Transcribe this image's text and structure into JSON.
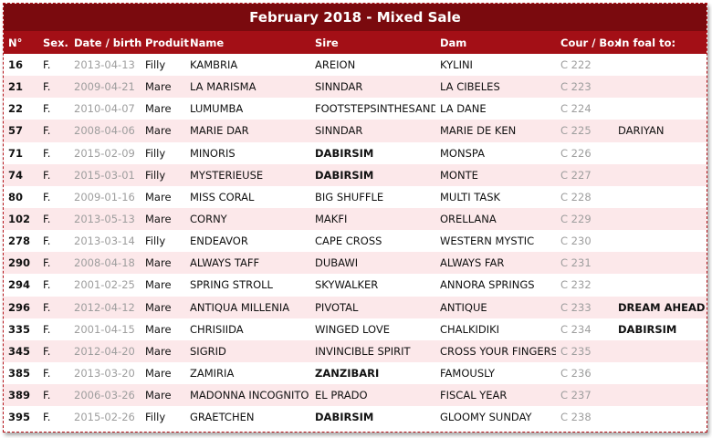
{
  "title": "February 2018 - Mixed Sale",
  "headers": [
    "N°",
    "Sex.",
    "Date / birth",
    "Produit",
    "Name",
    "Sire",
    "Dam",
    "Cour / Box",
    "In foal to:"
  ],
  "rows": [
    {
      "num": "16",
      "sex": "F.",
      "date": "2013-04-13",
      "produit": "Filly",
      "name": "KAMBRIA",
      "sire": "AREION",
      "sire_bold": false,
      "dam": "KYLINI",
      "cour": "C 222",
      "foal": "",
      "foal_bold": false
    },
    {
      "num": "21",
      "sex": "F.",
      "date": "2009-04-21",
      "produit": "Mare",
      "name": "LA MARISMA",
      "sire": "SINNDAR",
      "sire_bold": false,
      "dam": "LA CIBELES",
      "cour": "C 223",
      "foal": "",
      "foal_bold": false
    },
    {
      "num": "22",
      "sex": "F.",
      "date": "2010-04-07",
      "produit": "Mare",
      "name": "LUMUMBA",
      "sire": "FOOTSTEPSINTHESAND",
      "sire_bold": false,
      "dam": "LA DANE",
      "cour": "C 224",
      "foal": "",
      "foal_bold": false
    },
    {
      "num": "57",
      "sex": "F.",
      "date": "2008-04-06",
      "produit": "Mare",
      "name": "MARIE DAR",
      "sire": "SINNDAR",
      "sire_bold": false,
      "dam": "MARIE DE KEN",
      "cour": "C 225",
      "foal": "DARIYAN",
      "foal_bold": false
    },
    {
      "num": "71",
      "sex": "F.",
      "date": "2015-02-09",
      "produit": "Filly",
      "name": "MINORIS",
      "sire": "DABIRSIM",
      "sire_bold": true,
      "dam": "MONSPA",
      "cour": "C 226",
      "foal": "",
      "foal_bold": false
    },
    {
      "num": "74",
      "sex": "F.",
      "date": "2015-03-01",
      "produit": "Filly",
      "name": "MYSTERIEUSE",
      "sire": "DABIRSIM",
      "sire_bold": true,
      "dam": "MONTE",
      "cour": "C 227",
      "foal": "",
      "foal_bold": false
    },
    {
      "num": "80",
      "sex": "F.",
      "date": "2009-01-16",
      "produit": "Mare",
      "name": "MISS CORAL",
      "sire": "BIG SHUFFLE",
      "sire_bold": false,
      "dam": "MULTI TASK",
      "cour": "C 228",
      "foal": "",
      "foal_bold": false
    },
    {
      "num": "102",
      "sex": "F.",
      "date": "2013-05-13",
      "produit": "Mare",
      "name": "CORNY",
      "sire": "MAKFI",
      "sire_bold": false,
      "dam": "ORELLANA",
      "cour": "C 229",
      "foal": "",
      "foal_bold": false
    },
    {
      "num": "278",
      "sex": "F.",
      "date": "2013-03-14",
      "produit": "Filly",
      "name": "ENDEAVOR",
      "sire": "CAPE CROSS",
      "sire_bold": false,
      "dam": "WESTERN MYSTIC",
      "cour": "C 230",
      "foal": "",
      "foal_bold": false
    },
    {
      "num": "290",
      "sex": "F.",
      "date": "2008-04-18",
      "produit": "Mare",
      "name": "ALWAYS TAFF",
      "sire": "DUBAWI",
      "sire_bold": false,
      "dam": "ALWAYS FAR",
      "cour": "C 231",
      "foal": "",
      "foal_bold": false
    },
    {
      "num": "294",
      "sex": "F.",
      "date": "2001-02-25",
      "produit": "Mare",
      "name": "SPRING STROLL",
      "sire": "SKYWALKER",
      "sire_bold": false,
      "dam": "ANNORA SPRINGS",
      "cour": "C 232",
      "foal": "",
      "foal_bold": false
    },
    {
      "num": "296",
      "sex": "F.",
      "date": "2012-04-12",
      "produit": "Mare",
      "name": "ANTIQUA MILLENIA",
      "sire": "PIVOTAL",
      "sire_bold": false,
      "dam": "ANTIQUE",
      "cour": "C 233",
      "foal": "DREAM AHEAD",
      "foal_bold": true
    },
    {
      "num": "335",
      "sex": "F.",
      "date": "2001-04-15",
      "produit": "Mare",
      "name": "CHRISIIDA",
      "sire": "WINGED LOVE",
      "sire_bold": false,
      "dam": "CHALKIDIKI",
      "cour": "C 234",
      "foal": "DABIRSIM",
      "foal_bold": true
    },
    {
      "num": "345",
      "sex": "F.",
      "date": "2012-04-20",
      "produit": "Mare",
      "name": "SIGRID",
      "sire": "INVINCIBLE SPIRIT",
      "sire_bold": false,
      "dam": "CROSS YOUR FINGERS",
      "cour": "C 235",
      "foal": "",
      "foal_bold": false
    },
    {
      "num": "385",
      "sex": "F.",
      "date": "2013-03-20",
      "produit": "Mare",
      "name": "ZAMIRIA",
      "sire": "ZANZIBARI",
      "sire_bold": true,
      "dam": "FAMOUSLY",
      "cour": "C 236",
      "foal": "",
      "foal_bold": false
    },
    {
      "num": "389",
      "sex": "F.",
      "date": "2006-03-26",
      "produit": "Mare",
      "name": "MADONNA INCOGNITO",
      "sire": "EL PRADO",
      "sire_bold": false,
      "dam": "FISCAL YEAR",
      "cour": "C 237",
      "foal": "",
      "foal_bold": false
    },
    {
      "num": "395",
      "sex": "F.",
      "date": "2015-02-26",
      "produit": "Filly",
      "name": "GRAETCHEN",
      "sire": "DABIRSIM",
      "sire_bold": true,
      "dam": "GLOOMY SUNDAY",
      "cour": "C 238",
      "foal": "",
      "foal_bold": false
    }
  ],
  "colors": {
    "title_bg": "#7a0a0e",
    "header_bg": "#a30f16",
    "stripe": "#fce8ea",
    "muted": "#9e9e9e"
  }
}
